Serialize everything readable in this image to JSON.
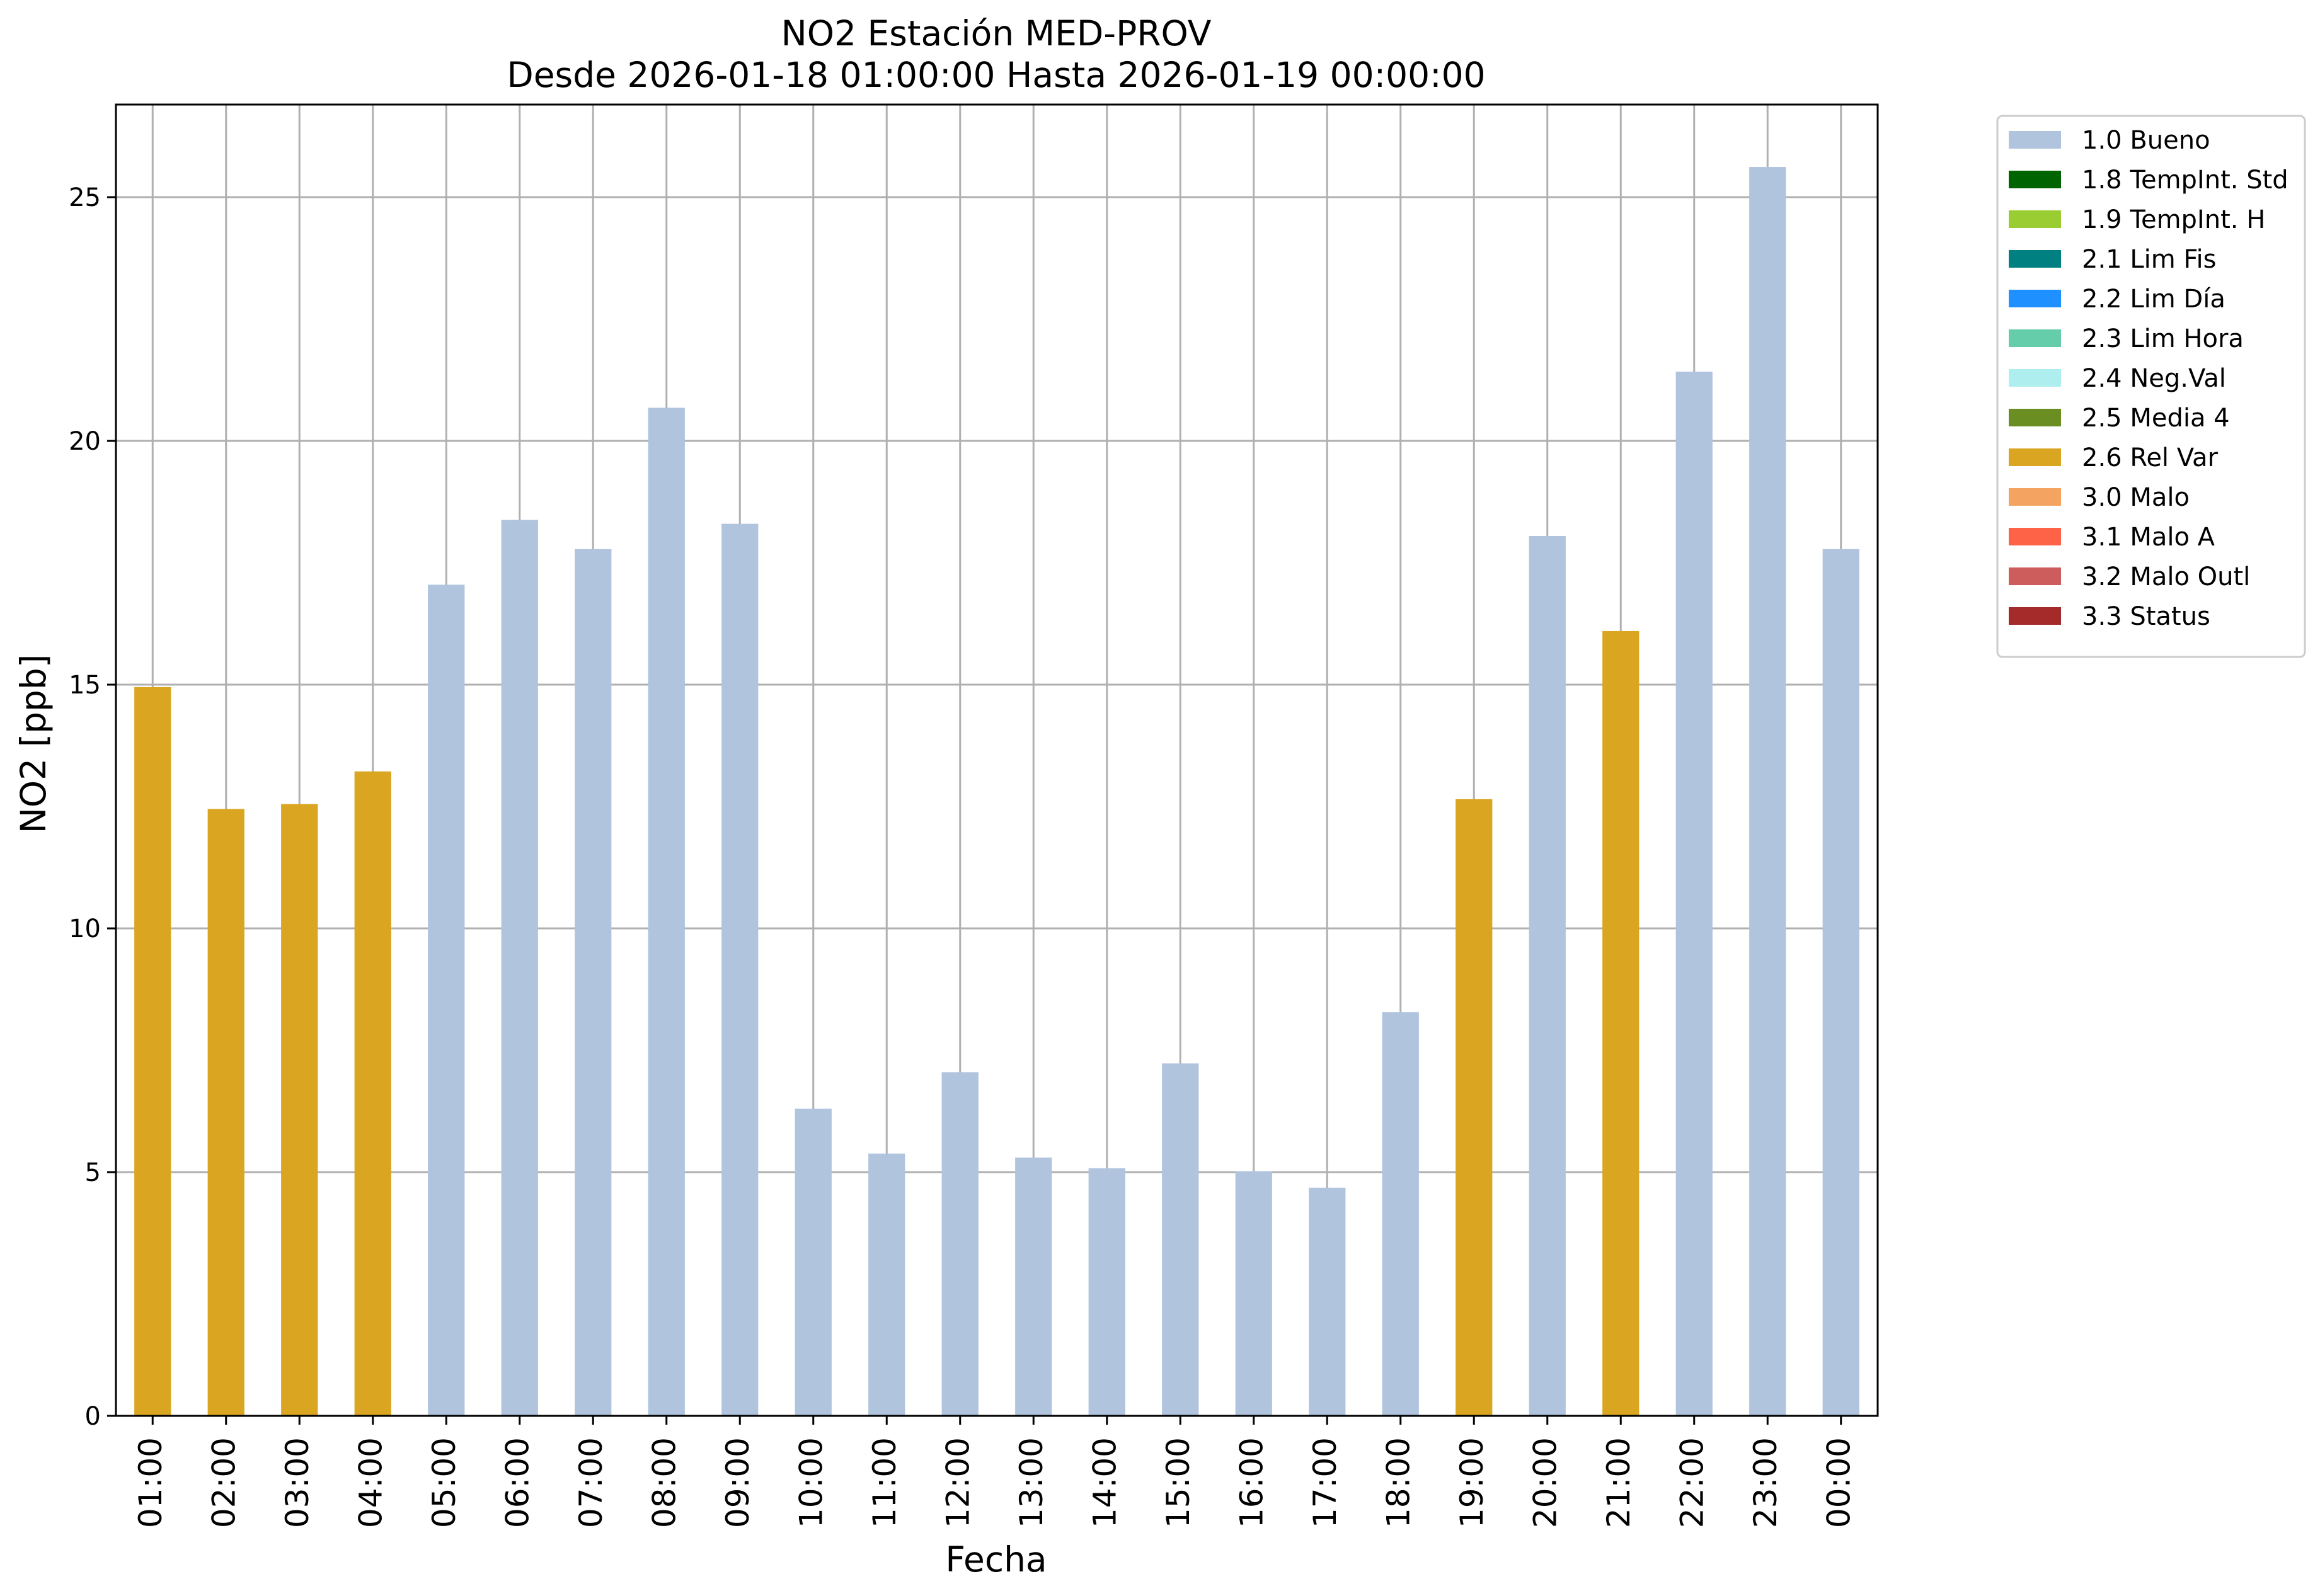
{
  "chart_data": {
    "type": "bar",
    "title_line1": "NO2 Estación MED-PROV",
    "title_line2": "Desde 2026-01-18 01:00:00 Hasta 2026-01-19 00:00:00",
    "xlabel": "Fecha",
    "ylabel": "NO2 [ppb]",
    "ylim": [
      0,
      26.9
    ],
    "yticks": [
      "0",
      "5",
      "10",
      "15",
      "20",
      "25"
    ],
    "grid": true,
    "legend_position": "outside-top-right",
    "categories": [
      "01:00",
      "02:00",
      "03:00",
      "04:00",
      "05:00",
      "06:00",
      "07:00",
      "08:00",
      "09:00",
      "10:00",
      "11:00",
      "12:00",
      "13:00",
      "14:00",
      "15:00",
      "16:00",
      "17:00",
      "18:00",
      "19:00",
      "20:00",
      "21:00",
      "22:00",
      "23:00",
      "00:00"
    ],
    "values": [
      14.95,
      12.45,
      12.55,
      13.22,
      17.05,
      18.38,
      17.78,
      20.68,
      18.3,
      6.3,
      5.38,
      7.05,
      5.3,
      5.08,
      7.23,
      5.02,
      4.68,
      8.28,
      12.65,
      18.05,
      16.1,
      21.42,
      25.62,
      17.78
    ],
    "flags": [
      "2.6 Rel Var",
      "2.6 Rel Var",
      "2.6 Rel Var",
      "2.6 Rel Var",
      "1.0 Bueno",
      "1.0 Bueno",
      "1.0 Bueno",
      "1.0 Bueno",
      "1.0 Bueno",
      "1.0 Bueno",
      "1.0 Bueno",
      "1.0 Bueno",
      "1.0 Bueno",
      "1.0 Bueno",
      "1.0 Bueno",
      "1.0 Bueno",
      "1.0 Bueno",
      "1.0 Bueno",
      "2.6 Rel Var",
      "1.0 Bueno",
      "2.6 Rel Var",
      "1.0 Bueno",
      "1.0 Bueno",
      "1.0 Bueno"
    ],
    "legend": [
      {
        "label": "1.0 Bueno",
        "color": "#b0c4de"
      },
      {
        "label": "1.8 TempInt. Std",
        "color": "#006400"
      },
      {
        "label": "1.9 TempInt. H",
        "color": "#9acd32"
      },
      {
        "label": "2.1 Lim Fis",
        "color": "#008080"
      },
      {
        "label": "2.2 Lim Día",
        "color": "#1e90ff"
      },
      {
        "label": "2.3 Lim Hora",
        "color": "#66cdaa"
      },
      {
        "label": "2.4 Neg.Val",
        "color": "#afeeee"
      },
      {
        "label": "2.5 Media 4",
        "color": "#6b8e23"
      },
      {
        "label": "2.6 Rel Var",
        "color": "#daa520"
      },
      {
        "label": "3.0 Malo",
        "color": "#f4a460"
      },
      {
        "label": "3.1 Malo A",
        "color": "#ff6347"
      },
      {
        "label": "3.2 Malo Outl",
        "color": "#cd5c5c"
      },
      {
        "label": "3.3 Status",
        "color": "#a52a2a"
      }
    ],
    "colors": {
      "grid": "#b0b0b0",
      "axes": "#000000"
    }
  }
}
